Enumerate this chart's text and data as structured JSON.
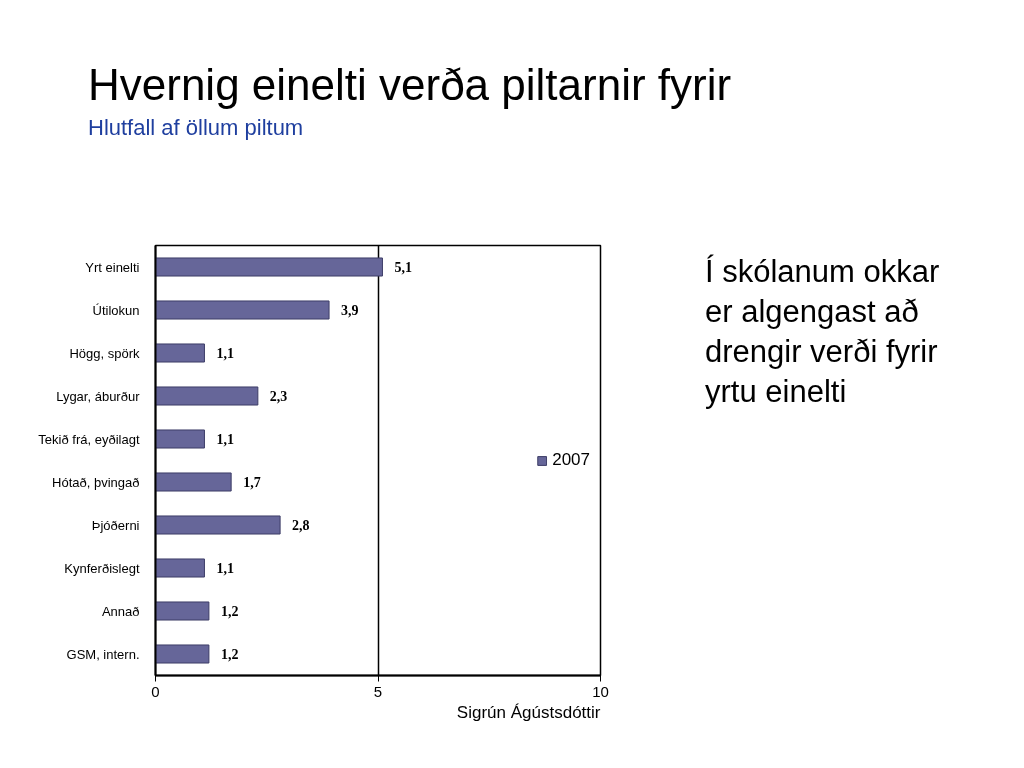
{
  "chart_data": {
    "type": "bar",
    "orientation": "horizontal",
    "title": "Hvernig einelti verða piltarnir fyrir",
    "subtitle": "Hlutfall af öllum piltum",
    "categories": [
      "Yrt einelti",
      "Útilokun",
      "Högg, spörk",
      "Lygar, áburður",
      "Tekið frá, eyðilagt",
      "Hótað, þvingað",
      "Þjóðerni",
      "Kynferðislegt",
      "Annað",
      "GSM, intern."
    ],
    "series": [
      {
        "name": "2007",
        "color": "#666699",
        "values": [
          5.1,
          3.9,
          1.1,
          2.3,
          1.1,
          1.7,
          2.8,
          1.1,
          1.2,
          1.2
        ],
        "value_labels": [
          "5,1",
          "3,9",
          "1,1",
          "2,3",
          "1,1",
          "1,7",
          "2,8",
          "1,1",
          "1,2",
          "1,2"
        ]
      }
    ],
    "xlim": [
      0,
      10
    ],
    "xticks": [
      0,
      5,
      10
    ],
    "grid": "x",
    "legend": "right",
    "annotations": [
      "Í skólanum okkar er algengast að drengir verði fyrir yrtu einelti",
      "Sigrún Ágústsdóttir"
    ]
  }
}
